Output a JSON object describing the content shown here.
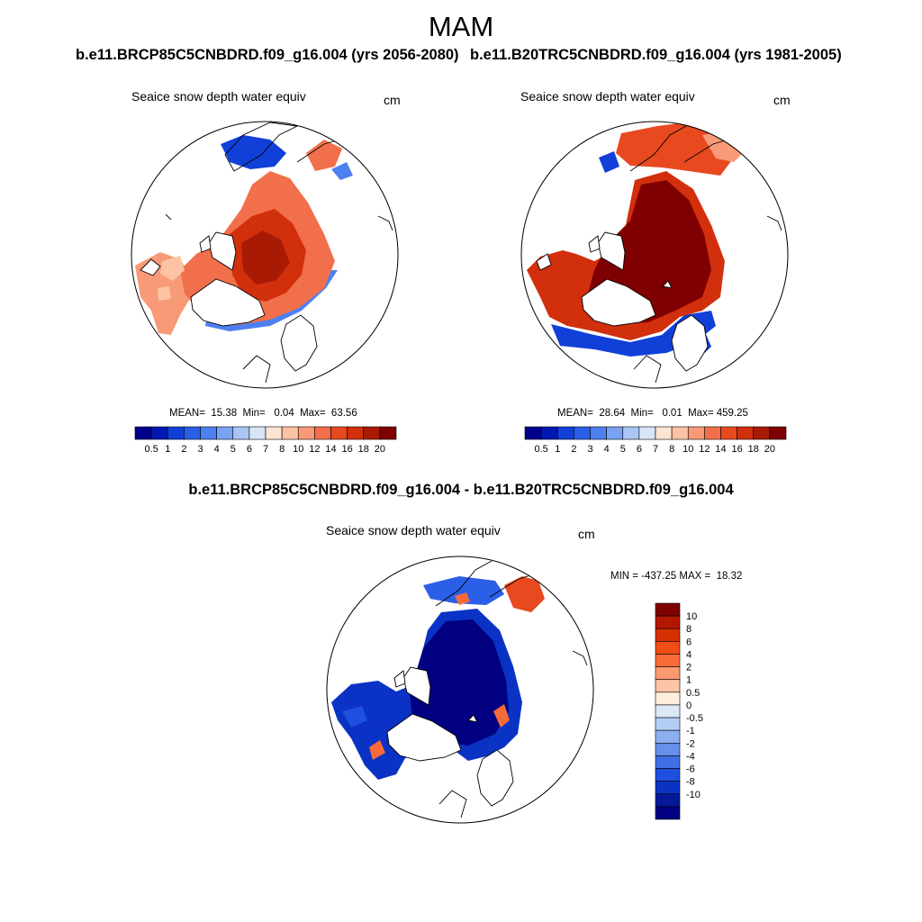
{
  "figure": {
    "season": "MAM",
    "case_left_header": "b.e11.BRCP85C5CNBDRD.f09_g16.004 (yrs 2056-2080)",
    "case_right_header": "b.e11.B20TRC5CNBDRD.f09_g16.004 (yrs 1981-2005)",
    "diff_header": "b.e11.BRCP85C5CNBDRD.f09_g16.004 - b.e11.B20TRC5CNBDRD.f09_g16.004"
  },
  "chart_data": [
    {
      "type": "heatmap",
      "projection": "north-polar-stereographic",
      "title": "Seaice snow depth water equiv",
      "units": "cm",
      "stats": {
        "mean": 15.38,
        "min": 0.04,
        "max": 63.56
      },
      "stats_text": "MEAN=  15.38  Min=   0.04  Max=  63.56",
      "colorbar": {
        "orientation": "horizontal",
        "levels": [
          "0.5",
          "1",
          "2",
          "3",
          "4",
          "5",
          "6",
          "7",
          "8",
          "10",
          "12",
          "14",
          "16",
          "18",
          "20"
        ],
        "colors": [
          "#00008c",
          "#0019b3",
          "#1140d9",
          "#2b5fe8",
          "#4d80f0",
          "#7aa2f2",
          "#a9c5f4",
          "#d7e6f7",
          "#fde5d3",
          "#fbc2a4",
          "#f89a77",
          "#f26f4b",
          "#e8491f",
          "#d22f0d",
          "#a91a05",
          "#7f0000"
        ]
      },
      "field_summary": {
        "central_arctic": "16-20",
        "marginal_seas": "10-16",
        "ice_edge": "0.5-4"
      }
    },
    {
      "type": "heatmap",
      "projection": "north-polar-stereographic",
      "title": "Seaice snow depth water equiv",
      "units": "cm",
      "stats": {
        "mean": 28.64,
        "min": 0.01,
        "max": 459.25
      },
      "stats_text": "MEAN=  28.64  Min=   0.01  Max= 459.25",
      "colorbar": {
        "orientation": "horizontal",
        "levels": [
          "0.5",
          "1",
          "2",
          "3",
          "4",
          "5",
          "6",
          "7",
          "8",
          "10",
          "12",
          "14",
          "16",
          "18",
          "20"
        ],
        "colors": [
          "#00008c",
          "#0019b3",
          "#1140d9",
          "#2b5fe8",
          "#4d80f0",
          "#7aa2f2",
          "#a9c5f4",
          "#d7e6f7",
          "#fde5d3",
          "#fbc2a4",
          "#f89a77",
          "#f26f4b",
          "#e8491f",
          "#d22f0d",
          "#a91a05",
          "#7f0000"
        ]
      },
      "field_summary": {
        "central_arctic": ">20",
        "marginal_seas": "16-20",
        "ice_edge": "0.5-4"
      }
    },
    {
      "type": "heatmap",
      "projection": "north-polar-stereographic",
      "title": "Seaice snow depth water equiv",
      "units": "cm",
      "stats": {
        "min": -437.25,
        "max": 18.32
      },
      "stats_text": "MIN = -437.25 MAX =  18.32",
      "colorbar": {
        "orientation": "vertical",
        "levels": [
          "10",
          "8",
          "6",
          "4",
          "2",
          "1",
          "0.5",
          "0",
          "-0.5",
          "-1",
          "-2",
          "-4",
          "-6",
          "-8",
          "-10"
        ],
        "colors": [
          "#800000",
          "#b21800",
          "#d63000",
          "#f04d14",
          "#f86b38",
          "#fa9a70",
          "#fcc4a4",
          "#fdeedc",
          "#dce8f8",
          "#b4cdf5",
          "#8cafef",
          "#6690ea",
          "#3f6fe6",
          "#1f4fe0",
          "#0a32c4",
          "#041a9a",
          "#000080"
        ]
      },
      "field_summary": {
        "central_arctic": "< -10",
        "bering_okhotsk": "0.5-10"
      }
    }
  ]
}
